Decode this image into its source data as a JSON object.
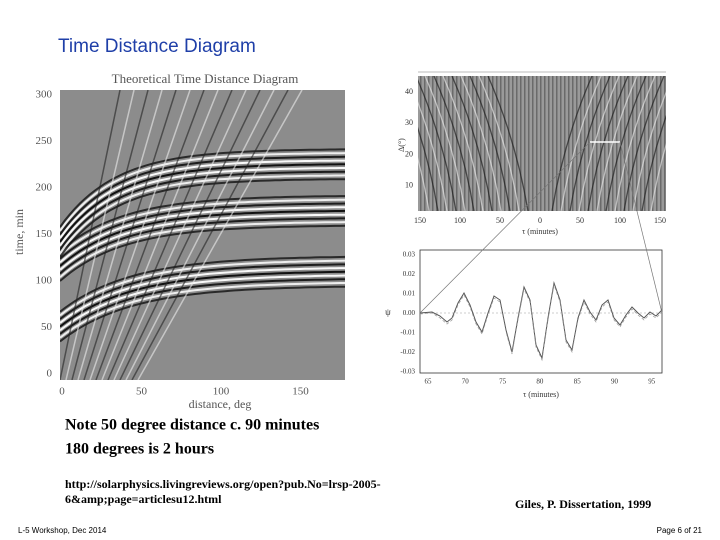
{
  "slide": {
    "title": "Time Distance Diagram",
    "figures": [
      {
        "title": "Theoretical Time Distance Diagram",
        "ylabel": "time, min",
        "xlabel": "distance, deg",
        "yticks": [
          "300",
          "250",
          "200",
          "150",
          "100",
          "50",
          "0"
        ],
        "xticks": [
          "0",
          "50",
          "100",
          "150"
        ]
      },
      {
        "ylabel": "Δ(°)",
        "xlabel": "τ (minutes)",
        "yticks": [
          "40",
          "30",
          "20",
          "10"
        ],
        "xticks": [
          "150",
          "100",
          "50",
          "0",
          "50",
          "100",
          "150"
        ]
      },
      {
        "ylabel": "ψ",
        "xlabel": "τ (minutes)",
        "yticks": [
          "0.03",
          "0.02",
          "0.01",
          "0.00",
          "-0.01",
          "-0.02",
          "-0.03"
        ],
        "xticks": [
          "65",
          "70",
          "75",
          "80",
          "85",
          "90",
          "95"
        ]
      }
    ],
    "notes": [
      "Note 50 degree distance c. 90 minutes",
      "180 degrees is 2 hours"
    ],
    "url": [
      "http://solarphysics.livingreviews.org/open?pub.No=lrsp-2005-",
      "6&amp;page=articlesu12.html"
    ],
    "citation": "Giles, P. Dissertation, 1999",
    "footer": {
      "left": "L-5 Workshop, Dec 2014",
      "right": "Page 6 of 21"
    }
  }
}
